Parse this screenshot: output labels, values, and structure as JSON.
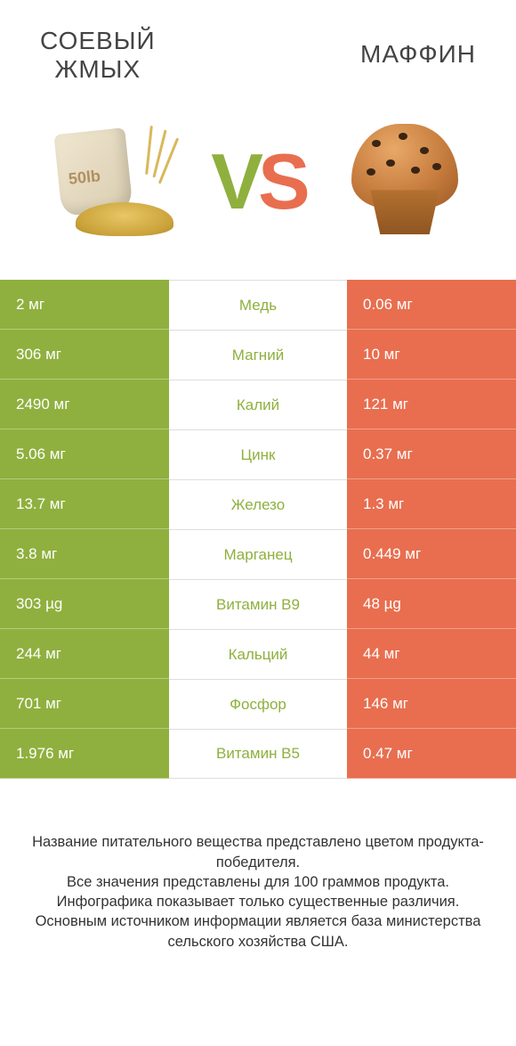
{
  "header": {
    "left_title_line1": "СОЕВЫЙ",
    "left_title_line2": "ЖМЫХ",
    "right_title": "МАФФИН",
    "vs_v": "V",
    "vs_s": "S",
    "sack_label": "50lb"
  },
  "colors": {
    "left_bar": "#8fb03e",
    "right_bar": "#e86e4f",
    "mid_text_left": "#8fb03e",
    "mid_text_right": "#e86e4f",
    "background": "#ffffff",
    "row_divider": "#dedede"
  },
  "rows": [
    {
      "nutrient": "Медь",
      "left": "2 мг",
      "right": "0.06 мг",
      "winner": "left"
    },
    {
      "nutrient": "Магний",
      "left": "306 мг",
      "right": "10 мг",
      "winner": "left"
    },
    {
      "nutrient": "Калий",
      "left": "2490 мг",
      "right": "121 мг",
      "winner": "left"
    },
    {
      "nutrient": "Цинк",
      "left": "5.06 мг",
      "right": "0.37 мг",
      "winner": "left"
    },
    {
      "nutrient": "Железо",
      "left": "13.7 мг",
      "right": "1.3 мг",
      "winner": "left"
    },
    {
      "nutrient": "Марганец",
      "left": "3.8 мг",
      "right": "0.449 мг",
      "winner": "left"
    },
    {
      "nutrient": "Витамин B9",
      "left": "303 µg",
      "right": "48 µg",
      "winner": "left"
    },
    {
      "nutrient": "Кальций",
      "left": "244 мг",
      "right": "44 мг",
      "winner": "left"
    },
    {
      "nutrient": "Фосфор",
      "left": "701 мг",
      "right": "146 мг",
      "winner": "left"
    },
    {
      "nutrient": "Витамин B5",
      "left": "1.976 мг",
      "right": "0.47 мг",
      "winner": "left"
    }
  ],
  "footer": {
    "line1": "Название питательного вещества представлено цветом продукта-победителя.",
    "line2": "Все значения представлены для 100 граммов продукта.",
    "line3": "Инфографика показывает только существенные различия.",
    "line4": "Основным источником информации является база министерства сельского хозяйства США."
  }
}
